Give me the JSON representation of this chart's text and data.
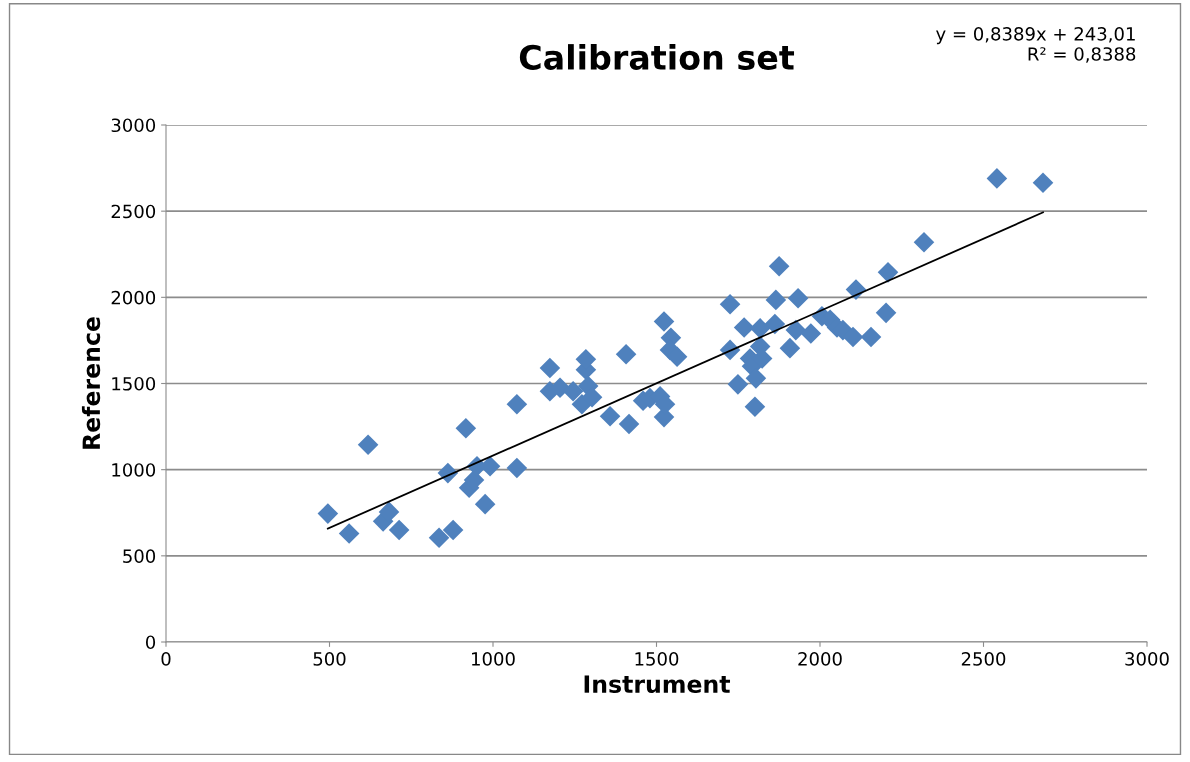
{
  "chart_data": {
    "type": "scatter",
    "title": "Calibration set",
    "xlabel": "Instrument",
    "ylabel": "Reference",
    "annotations": [
      "y = 0,8389x + 243,01\nR² = 0,8388"
    ],
    "xlim": [
      0,
      3000
    ],
    "xticks": [
      0,
      500,
      1000,
      1500,
      2000,
      2500,
      3000
    ],
    "ylim": [
      0,
      3000
    ],
    "yticks": [
      0,
      500,
      1000,
      1500,
      2000,
      2500,
      3000
    ],
    "grid": "y",
    "legend": false,
    "marker": "diamond",
    "series": [
      {
        "color": "#4f81bd",
        "x": [
          495,
          560,
          618,
          664,
          682,
          713,
          835,
          878,
          862,
          917,
          927,
          942,
          951,
          976,
          991,
          1073,
          1073,
          1174,
          1174,
          1205,
          1245,
          1272,
          1284,
          1284,
          1291,
          1303,
          1358,
          1407,
          1416,
          1459,
          1480,
          1511,
          1523,
          1526,
          1523,
          1544,
          1541,
          1563,
          1725,
          1725,
          1749,
          1768,
          1786,
          1792,
          1801,
          1804,
          1817,
          1817,
          1823,
          1865,
          1862,
          1875,
          1933,
          1926,
          1908,
          1972,
          2006,
          2031,
          2052,
          2070,
          2110,
          2101,
          2156,
          2208,
          2202,
          2318,
          2541,
          2682
        ],
        "values": [
          745,
          630,
          1145,
          700,
          755,
          650,
          605,
          650,
          980,
          1240,
          895,
          940,
          1020,
          800,
          1020,
          1010,
          1380,
          1590,
          1455,
          1475,
          1455,
          1380,
          1580,
          1640,
          1485,
          1420,
          1310,
          1670,
          1265,
          1400,
          1415,
          1425,
          1305,
          1380,
          1860,
          1765,
          1695,
          1655,
          1960,
          1695,
          1495,
          1825,
          1645,
          1600,
          1365,
          1530,
          1820,
          1715,
          1645,
          1985,
          1845,
          2180,
          1995,
          1810,
          1705,
          1790,
          1890,
          1870,
          1825,
          1810,
          2045,
          1770,
          1770,
          2145,
          1910,
          2320,
          2690,
          2665
        ]
      },
      {
        "type": "line",
        "color": "#000000",
        "marker": "none",
        "x": [
          495,
          2682
        ],
        "values": [
          658,
          2493
        ]
      }
    ]
  }
}
